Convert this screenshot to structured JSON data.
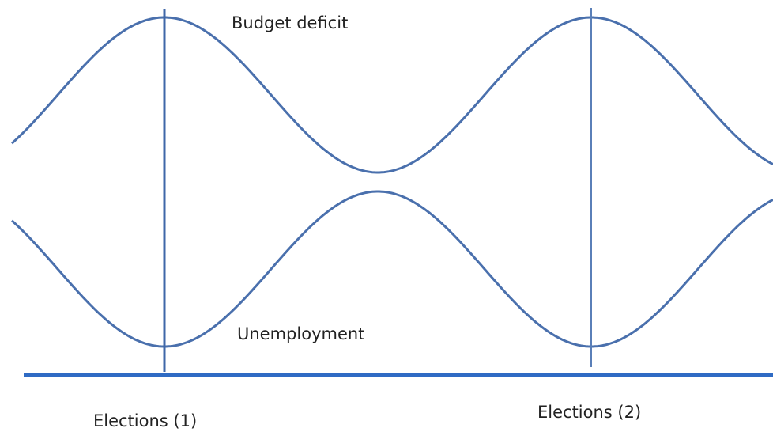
{
  "labels": {
    "top_curve": "Budget deficit",
    "bottom_curve": "Unemployment",
    "election_1": "Elections (1)",
    "election_2": "Elections (2)"
  }
}
